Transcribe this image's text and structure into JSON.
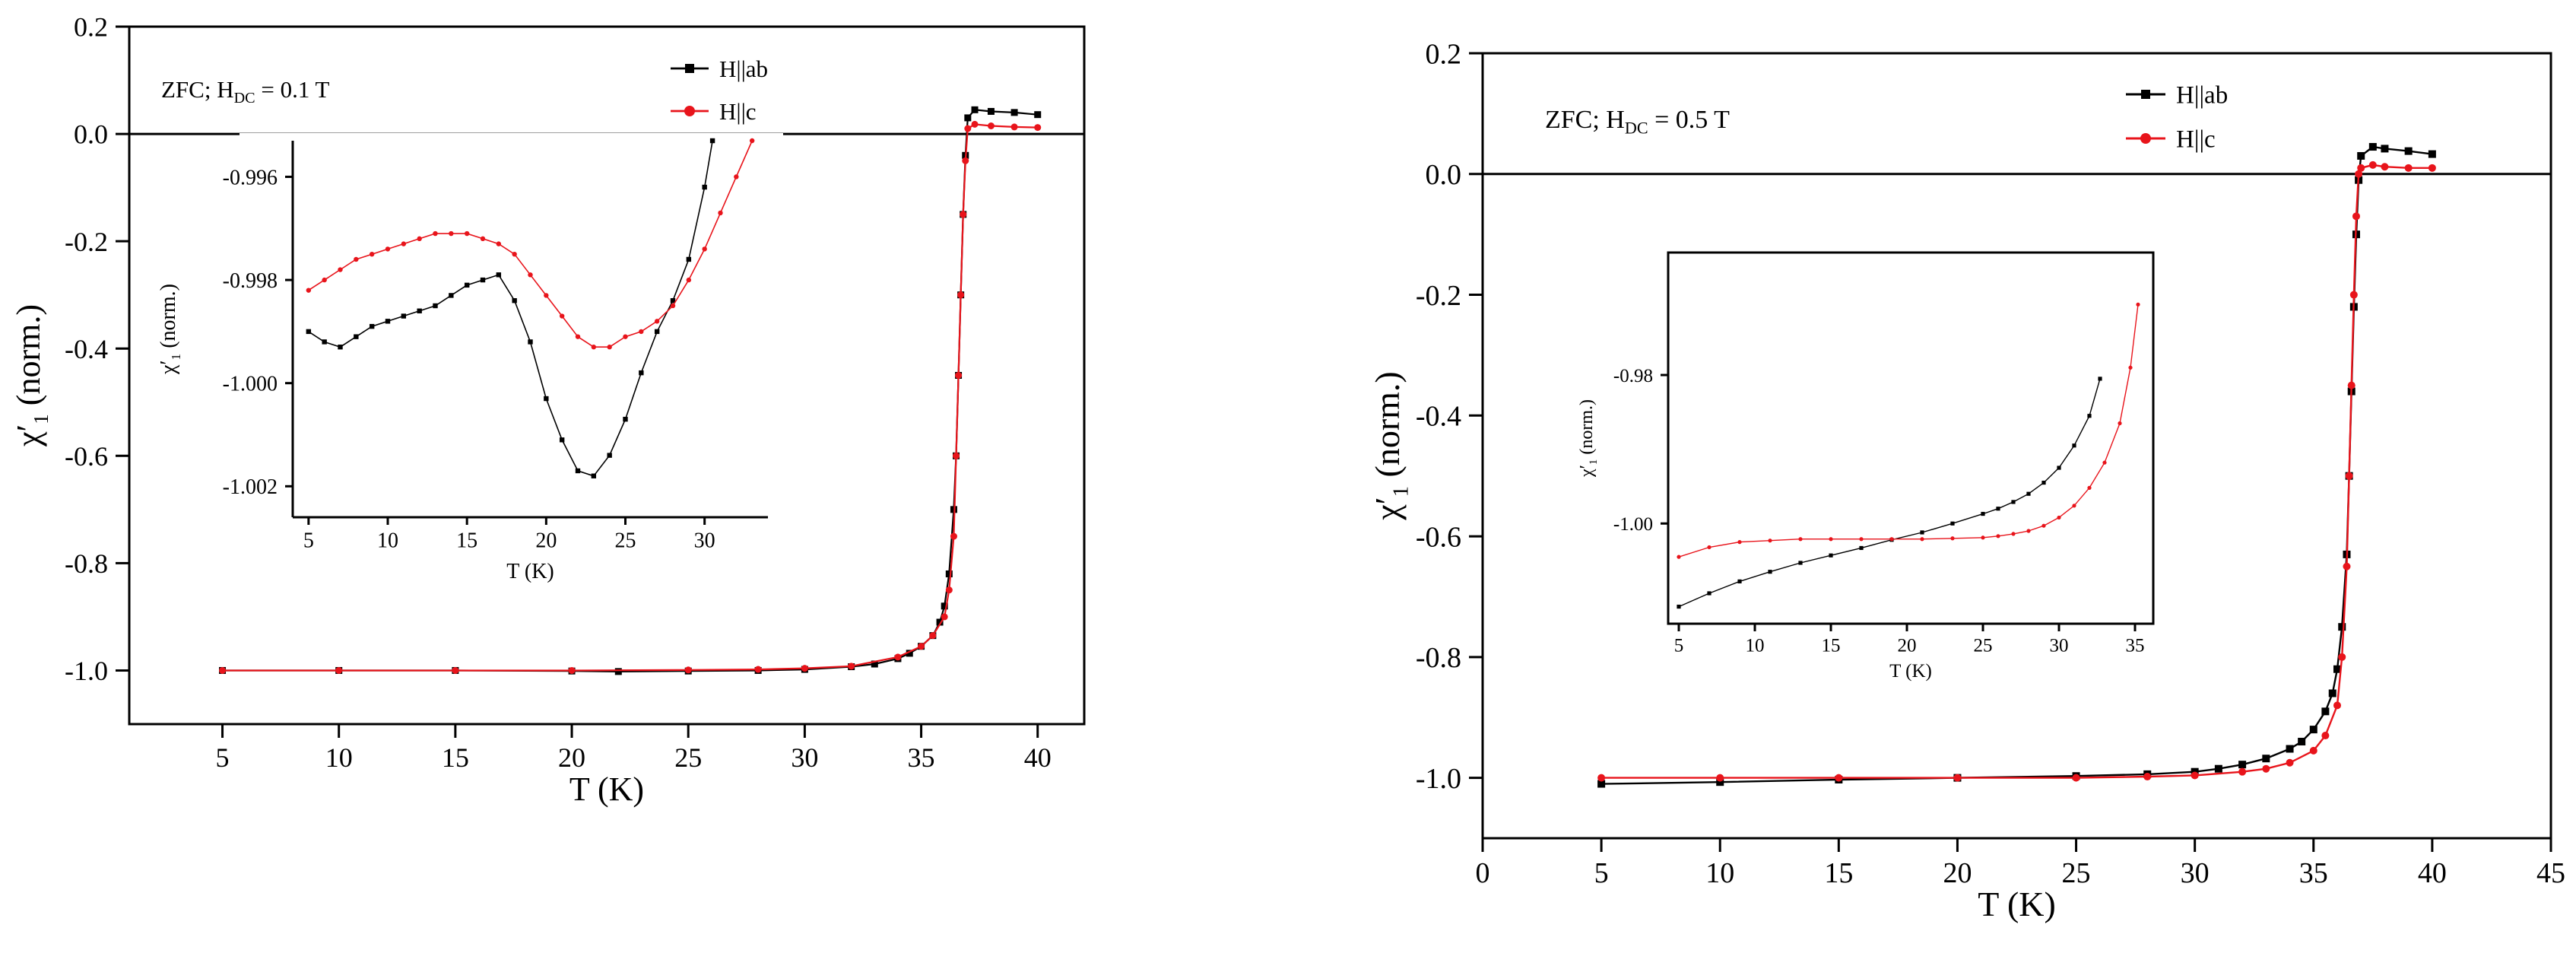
{
  "chart_data": [
    {
      "type": "scatter",
      "panel": "left-main",
      "title": "",
      "annotation": {
        "prefix": "ZFC; H",
        "sub": "DC",
        "suffix": " = 0.1 T"
      },
      "xlabel": "T (K)",
      "ylabel": {
        "main": "χ′",
        "sub": "1",
        "rest": " (norm.)"
      },
      "xlim": [
        1,
        42
      ],
      "ylim": [
        -1.1,
        0.2
      ],
      "xticks": [
        5,
        10,
        15,
        20,
        25,
        30,
        35,
        40
      ],
      "yticks": [
        0.2,
        0.0,
        -0.2,
        -0.4,
        -0.6,
        -0.8,
        -1.0
      ],
      "ytick_labels": [
        "0.2",
        "0.0",
        "-0.2",
        "-0.4",
        "-0.6",
        "-0.8",
        "-1.0"
      ],
      "zero_line": 0.0,
      "legend": {
        "position": "top-right",
        "entries": [
          "H||ab",
          "H||c"
        ]
      },
      "series": [
        {
          "name": "H||ab",
          "color": "#000000",
          "x": [
            5,
            10,
            15,
            20,
            22,
            25,
            28,
            30,
            32,
            33,
            34,
            34.5,
            35,
            35.5,
            35.8,
            36,
            36.2,
            36.4,
            36.5,
            36.6,
            36.7,
            36.8,
            36.9,
            37,
            37.3,
            38,
            39,
            40
          ],
          "y": [
            -1.0,
            -1.0,
            -1.0,
            -1.001,
            -1.002,
            -1.001,
            -1.0,
            -0.998,
            -0.993,
            -0.988,
            -0.978,
            -0.968,
            -0.955,
            -0.935,
            -0.91,
            -0.88,
            -0.82,
            -0.7,
            -0.6,
            -0.45,
            -0.3,
            -0.15,
            -0.04,
            0.03,
            0.045,
            0.042,
            0.04,
            0.036
          ]
        },
        {
          "name": "H||c",
          "color": "#e8141b",
          "x": [
            5,
            10,
            15,
            20,
            25,
            28,
            30,
            32,
            34,
            35,
            35.5,
            36,
            36.2,
            36.4,
            36.5,
            36.6,
            36.7,
            36.8,
            36.9,
            37,
            37.3,
            38,
            39,
            40
          ],
          "y": [
            -1.0,
            -1.0,
            -1.0,
            -1.0,
            -0.999,
            -0.998,
            -0.996,
            -0.992,
            -0.975,
            -0.955,
            -0.935,
            -0.9,
            -0.85,
            -0.75,
            -0.6,
            -0.45,
            -0.3,
            -0.15,
            -0.05,
            0.01,
            0.018,
            0.015,
            0.013,
            0.012
          ]
        }
      ]
    },
    {
      "type": "scatter",
      "panel": "left-inset",
      "xlabel": "T (K)",
      "ylabel": {
        "main": "χ′",
        "sub": "1",
        "rest": " (norm.)"
      },
      "xlim": [
        4,
        34
      ],
      "ylim": [
        -1.0026,
        -0.9953
      ],
      "xticks": [
        5,
        10,
        15,
        20,
        25,
        30
      ],
      "yticks": [
        -0.996,
        -0.998,
        -1.0,
        -1.002
      ],
      "ytick_labels": [
        "-0.996",
        "-0.998",
        "-1.000",
        "-1.002"
      ],
      "series": [
        {
          "name": "H||ab",
          "color": "#000000",
          "x": [
            5,
            6,
            7,
            8,
            9,
            10,
            11,
            12,
            13,
            14,
            15,
            16,
            17,
            18,
            19,
            20,
            21,
            22,
            23,
            24,
            25,
            26,
            27,
            28,
            29,
            30,
            30.5
          ],
          "y": [
            -0.999,
            -0.9992,
            -0.9993,
            -0.9991,
            -0.9989,
            -0.9988,
            -0.9987,
            -0.9986,
            -0.9985,
            -0.9983,
            -0.9981,
            -0.998,
            -0.9979,
            -0.9984,
            -0.9992,
            -1.0003,
            -1.0011,
            -1.0017,
            -1.0018,
            -1.0014,
            -1.0007,
            -0.9998,
            -0.999,
            -0.9984,
            -0.9976,
            -0.9962,
            -0.9953
          ]
        },
        {
          "name": "H||c",
          "color": "#e8141b",
          "x": [
            5,
            6,
            7,
            8,
            9,
            10,
            11,
            12,
            13,
            14,
            15,
            16,
            17,
            18,
            19,
            20,
            21,
            22,
            23,
            24,
            25,
            26,
            27,
            28,
            29,
            30,
            31,
            32,
            33
          ],
          "y": [
            -0.9982,
            -0.998,
            -0.9978,
            -0.9976,
            -0.9975,
            -0.9974,
            -0.9973,
            -0.9972,
            -0.9971,
            -0.9971,
            -0.9971,
            -0.9972,
            -0.9973,
            -0.9975,
            -0.9979,
            -0.9983,
            -0.9987,
            -0.9991,
            -0.9993,
            -0.9993,
            -0.9991,
            -0.999,
            -0.9988,
            -0.9985,
            -0.998,
            -0.9974,
            -0.9967,
            -0.996,
            -0.9953
          ]
        }
      ]
    },
    {
      "type": "scatter",
      "panel": "right-main",
      "title": "",
      "annotation": {
        "prefix": "ZFC; H",
        "sub": "DC",
        "suffix": " = 0.5 T"
      },
      "xlabel": "T (K)",
      "ylabel": {
        "main": "χ′",
        "sub": "1",
        "rest": " (norm.)"
      },
      "xlim": [
        0,
        45
      ],
      "ylim": [
        -1.1,
        0.2
      ],
      "xticks": [
        0,
        5,
        10,
        15,
        20,
        25,
        30,
        35,
        40,
        45
      ],
      "yticks": [
        0.2,
        0.0,
        -0.2,
        -0.4,
        -0.6,
        -0.8,
        -1.0
      ],
      "ytick_labels": [
        "0.2",
        "0.0",
        "-0.2",
        "-0.4",
        "-0.6",
        "-0.8",
        "-1.0"
      ],
      "zero_line": 0.0,
      "legend": {
        "position": "top-right",
        "entries": [
          "H||ab",
          "H||c"
        ]
      },
      "series": [
        {
          "name": "H||ab",
          "color": "#000000",
          "x": [
            5,
            10,
            15,
            20,
            25,
            28,
            30,
            31,
            32,
            33,
            34,
            34.5,
            35,
            35.5,
            35.8,
            36,
            36.2,
            36.4,
            36.5,
            36.6,
            36.7,
            36.8,
            36.9,
            37,
            37.5,
            38,
            39,
            40
          ],
          "y": [
            -1.01,
            -1.007,
            -1.003,
            -1.0,
            -0.997,
            -0.994,
            -0.99,
            -0.985,
            -0.978,
            -0.968,
            -0.952,
            -0.94,
            -0.92,
            -0.89,
            -0.86,
            -0.82,
            -0.75,
            -0.63,
            -0.5,
            -0.36,
            -0.22,
            -0.1,
            -0.01,
            0.03,
            0.045,
            0.042,
            0.038,
            0.033
          ]
        },
        {
          "name": "H||c",
          "color": "#e8141b",
          "x": [
            5,
            10,
            15,
            20,
            25,
            28,
            30,
            32,
            33,
            34,
            35,
            35.5,
            36,
            36.2,
            36.4,
            36.5,
            36.6,
            36.7,
            36.8,
            36.9,
            37,
            37.5,
            38,
            39,
            40
          ],
          "y": [
            -1.0,
            -1.0,
            -1.0,
            -1.0,
            -1.0,
            -0.998,
            -0.996,
            -0.99,
            -0.985,
            -0.975,
            -0.955,
            -0.93,
            -0.88,
            -0.8,
            -0.65,
            -0.5,
            -0.35,
            -0.2,
            -0.07,
            0.0,
            0.01,
            0.015,
            0.012,
            0.01,
            0.01
          ]
        }
      ]
    },
    {
      "type": "scatter",
      "panel": "right-inset",
      "xlabel": "T (K)",
      "ylabel": {
        "main": "χ′",
        "sub": "1",
        "rest": " (norm.)"
      },
      "xlim": [
        4.3,
        36.2
      ],
      "ylim": [
        -1.0135,
        -0.9635
      ],
      "xticks": [
        5,
        10,
        15,
        20,
        25,
        30,
        35
      ],
      "yticks": [
        -0.98,
        -1.0
      ],
      "ytick_labels": [
        "-0.98",
        "-1.00"
      ],
      "series": [
        {
          "name": "H||ab",
          "color": "#000000",
          "x": [
            5,
            7,
            9,
            11,
            13,
            15,
            17,
            19,
            21,
            23,
            25,
            26,
            27,
            28,
            29,
            30,
            31,
            32,
            32.7
          ],
          "y": [
            -1.0112,
            -1.0094,
            -1.0078,
            -1.0065,
            -1.0053,
            -1.0043,
            -1.0033,
            -1.0022,
            -1.0012,
            -1.0,
            -0.9987,
            -0.998,
            -0.9971,
            -0.996,
            -0.9945,
            -0.9925,
            -0.9895,
            -0.9855,
            -0.9805
          ]
        },
        {
          "name": "H||c",
          "color": "#e8141b",
          "x": [
            5,
            7,
            9,
            11,
            13,
            15,
            17,
            19,
            21,
            23,
            25,
            26,
            27,
            28,
            29,
            30,
            31,
            32,
            33,
            34,
            34.7,
            35.2
          ],
          "y": [
            -1.0045,
            -1.0032,
            -1.0025,
            -1.0023,
            -1.0021,
            -1.0021,
            -1.0021,
            -1.0021,
            -1.0021,
            -1.002,
            -1.0019,
            -1.0017,
            -1.0014,
            -1.001,
            -1.0003,
            -0.9992,
            -0.9976,
            -0.9952,
            -0.9918,
            -0.9865,
            -0.979,
            -0.9705
          ]
        }
      ]
    }
  ]
}
